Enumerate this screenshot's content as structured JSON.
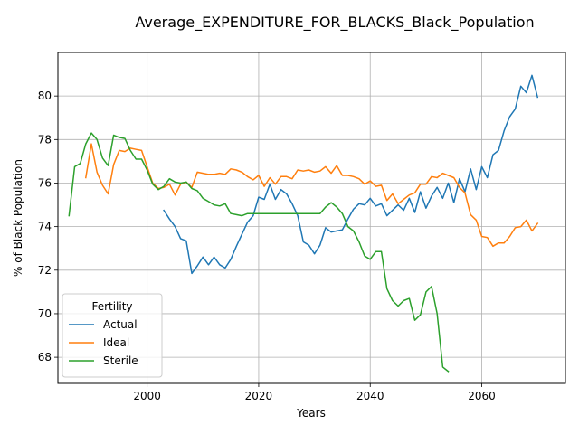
{
  "chart_data": {
    "type": "line",
    "title": "Average_EXPENDITURE_FOR_BLACKS_Black_Population",
    "xlabel": "Years",
    "ylabel": "% of Black Population",
    "xlim": [
      1984,
      2075
    ],
    "ylim": [
      66.8,
      82.0
    ],
    "xticks": [
      2000,
      2020,
      2040,
      2060
    ],
    "yticks": [
      68,
      70,
      72,
      74,
      76,
      78,
      80
    ],
    "grid": true,
    "legend": {
      "title": "Fertility",
      "position": "lower-left"
    },
    "series": [
      {
        "name": "Actual",
        "color": "#1f77b4",
        "x": [
          2003,
          2004,
          2005,
          2006,
          2007,
          2008,
          2009,
          2010,
          2011,
          2012,
          2013,
          2014,
          2015,
          2016,
          2017,
          2018,
          2019,
          2020,
          2021,
          2022,
          2023,
          2024,
          2025,
          2026,
          2027,
          2028,
          2029,
          2030,
          2031,
          2032,
          2033,
          2034,
          2035,
          2036,
          2037,
          2038,
          2039,
          2040,
          2041,
          2042,
          2043,
          2044,
          2045,
          2046,
          2047,
          2048,
          2049,
          2050,
          2051,
          2052,
          2053,
          2054,
          2055,
          2056,
          2057,
          2058,
          2059,
          2060,
          2061,
          2062,
          2063,
          2064,
          2065,
          2066,
          2067,
          2068,
          2069,
          2070
        ],
        "y": [
          74.75,
          74.35,
          74.0,
          73.45,
          73.35,
          71.85,
          72.2,
          72.6,
          72.25,
          72.6,
          72.25,
          72.1,
          72.5,
          73.1,
          73.65,
          74.2,
          74.5,
          75.35,
          75.25,
          75.95,
          75.25,
          75.7,
          75.5,
          75.05,
          74.5,
          73.3,
          73.15,
          72.75,
          73.15,
          73.95,
          73.75,
          73.8,
          73.85,
          74.35,
          74.8,
          75.05,
          75.0,
          75.3,
          74.95,
          75.05,
          74.5,
          74.75,
          75.0,
          74.75,
          75.3,
          74.65,
          75.6,
          74.85,
          75.4,
          75.8,
          75.3,
          76.0,
          75.1,
          76.2,
          75.6,
          76.65,
          75.7,
          76.75,
          76.25,
          77.3,
          77.5,
          78.4,
          79.05,
          79.4,
          80.45,
          80.15,
          80.95,
          79.95
        ]
      },
      {
        "name": "Ideal",
        "color": "#ff7f0e",
        "x": [
          1989,
          1990,
          1991,
          1992,
          1993,
          1994,
          1995,
          1996,
          1997,
          1998,
          1999,
          2000,
          2001,
          2002,
          2003,
          2004,
          2005,
          2006,
          2007,
          2008,
          2009,
          2010,
          2011,
          2012,
          2013,
          2014,
          2015,
          2016,
          2017,
          2018,
          2019,
          2020,
          2021,
          2022,
          2023,
          2024,
          2025,
          2026,
          2027,
          2028,
          2029,
          2030,
          2031,
          2032,
          2033,
          2034,
          2035,
          2036,
          2037,
          2038,
          2039,
          2040,
          2041,
          2042,
          2043,
          2044,
          2045,
          2046,
          2047,
          2048,
          2049,
          2050,
          2051,
          2052,
          2053,
          2054,
          2055,
          2056,
          2057,
          2058,
          2059,
          2060,
          2061,
          2062,
          2063,
          2064,
          2065,
          2066,
          2067,
          2068,
          2069,
          2070
        ],
        "y": [
          76.25,
          77.8,
          76.5,
          75.9,
          75.5,
          76.85,
          77.5,
          77.45,
          77.6,
          77.55,
          77.5,
          76.75,
          76.0,
          75.75,
          75.8,
          75.95,
          75.45,
          75.95,
          76.05,
          75.8,
          76.5,
          76.45,
          76.4,
          76.4,
          76.45,
          76.4,
          76.65,
          76.6,
          76.5,
          76.3,
          76.15,
          76.35,
          75.85,
          76.25,
          75.95,
          76.3,
          76.3,
          76.2,
          76.6,
          76.55,
          76.6,
          76.5,
          76.55,
          76.75,
          76.45,
          76.8,
          76.35,
          76.35,
          76.3,
          76.2,
          75.95,
          76.1,
          75.85,
          75.9,
          75.2,
          75.5,
          75.05,
          75.25,
          75.45,
          75.55,
          75.95,
          75.95,
          76.3,
          76.25,
          76.45,
          76.35,
          76.25,
          75.8,
          75.55,
          74.55,
          74.3,
          73.55,
          73.5,
          73.1,
          73.25,
          73.25,
          73.55,
          73.95,
          74.0,
          74.3,
          73.8,
          74.15
        ]
      },
      {
        "name": "Sterile",
        "color": "#2ca02c",
        "x": [
          1986,
          1987,
          1988,
          1989,
          1990,
          1991,
          1992,
          1993,
          1994,
          1995,
          1996,
          1997,
          1998,
          1999,
          2000,
          2001,
          2002,
          2003,
          2004,
          2005,
          2006,
          2007,
          2008,
          2009,
          2010,
          2011,
          2012,
          2013,
          2014,
          2015,
          2016,
          2017,
          2018,
          2019,
          2020,
          2021,
          2022,
          2023,
          2024,
          2025,
          2026,
          2027,
          2028,
          2029,
          2030,
          2031,
          2032,
          2033,
          2034,
          2035,
          2036,
          2037,
          2038,
          2039,
          2040,
          2041,
          2042,
          2043,
          2044,
          2045,
          2046,
          2047,
          2048,
          2049,
          2050,
          2051,
          2052,
          2053,
          2054
        ],
        "y": [
          74.5,
          76.75,
          76.9,
          77.8,
          78.3,
          78.0,
          77.15,
          76.8,
          78.2,
          78.1,
          78.05,
          77.5,
          77.1,
          77.1,
          76.6,
          75.95,
          75.7,
          75.85,
          76.2,
          76.05,
          76.0,
          76.05,
          75.75,
          75.65,
          75.3,
          75.15,
          75.0,
          74.95,
          75.05,
          74.6,
          74.55,
          74.5,
          74.6,
          74.6,
          74.6,
          74.6,
          74.6,
          74.6,
          74.6,
          74.6,
          74.6,
          74.6,
          74.6,
          74.6,
          74.6,
          74.6,
          74.9,
          75.1,
          74.9,
          74.6,
          74.0,
          73.8,
          73.3,
          72.65,
          72.5,
          72.85,
          72.85,
          71.15,
          70.6,
          70.35,
          70.6,
          70.7,
          69.7,
          69.95,
          71.0,
          71.25,
          70.0,
          67.55,
          67.35
        ]
      }
    ]
  }
}
